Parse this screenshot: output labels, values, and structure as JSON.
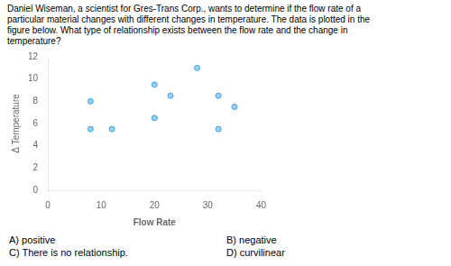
{
  "chart_data": {
    "type": "scatter",
    "title": [
      "Daniel Wiseman, a scientist for Gres-Trans Corp., wants to determine if the flow rate of a",
      "particular material changes with different changes in temperature. The data is plotted in the",
      "figure below. What type of relationship exists between the flow rate and the change in",
      "temperature?"
    ],
    "x": [
      8,
      8,
      12,
      20,
      20,
      23,
      28,
      32,
      32,
      35
    ],
    "values": [
      5.5,
      8,
      5.5,
      6.5,
      9.5,
      8.5,
      11,
      5.5,
      8.5,
      7.5
    ],
    "xlabel": "Flow Rate",
    "ylabel": "Δ Temperature",
    "xlim": [
      0,
      40
    ],
    "ylim": [
      0,
      12
    ],
    "xticks": [
      0,
      10,
      20,
      30,
      40
    ],
    "yticks": [
      0,
      2,
      4,
      6,
      8,
      10,
      12
    ],
    "grid": false,
    "annotations": [
      "A) positive",
      "B) negative",
      "C) There is no relationship.",
      "D) curvilinear"
    ]
  }
}
